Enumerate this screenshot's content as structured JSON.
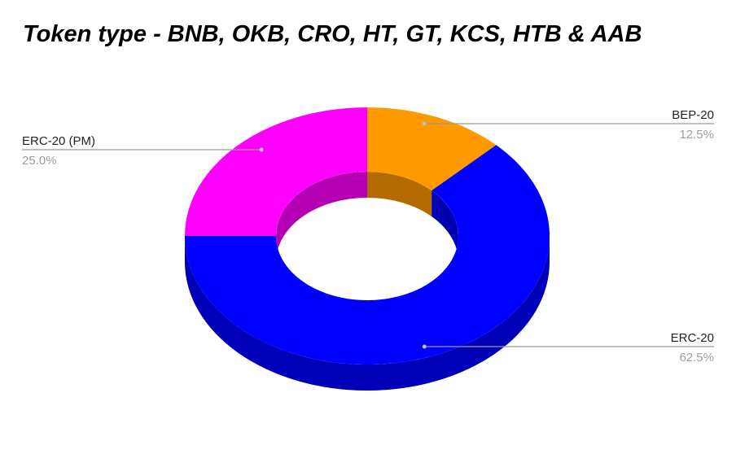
{
  "chart_data": {
    "type": "pie",
    "subtype": "3d-donut",
    "title": "Token type - BNB, OKB, CRO, HT, GT, KCS, HTB & AAB",
    "slices": [
      {
        "label": "BEP-20",
        "value": 12.5,
        "percent_label": "12.5%",
        "color": "#ff9900"
      },
      {
        "label": "ERC-20",
        "value": 62.5,
        "percent_label": "62.5%",
        "color": "#0000ff"
      },
      {
        "label": "ERC-20 (PM)",
        "value": 25.0,
        "percent_label": "25.0%",
        "color": "#ff00ff"
      }
    ],
    "legend": "none",
    "label_placement": "outside with leader lines"
  }
}
